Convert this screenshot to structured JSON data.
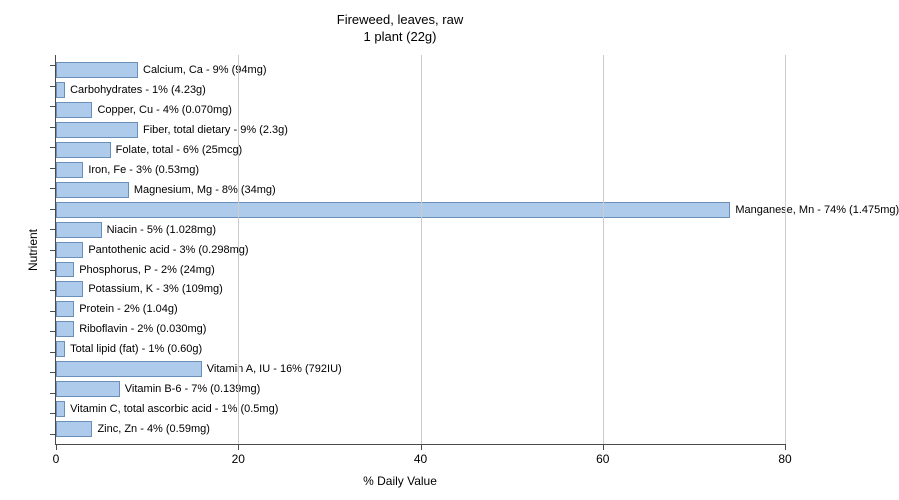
{
  "chart": {
    "type": "bar-horizontal",
    "title_line1": "Fireweed, leaves, raw",
    "title_line2": "1 plant (22g)",
    "title_fontsize": 13,
    "xlabel": "% Daily Value",
    "ylabel": "Nutrient",
    "label_fontsize": 12,
    "xlim": [
      0,
      80
    ],
    "xtick_step": 20,
    "xticks": [
      0,
      20,
      40,
      60,
      80
    ],
    "background_color": "#ffffff",
    "grid_color": "#cccccc",
    "axis_color": "#4a4a4a",
    "bar_color": "#aecbeb",
    "bar_border_color": "#6a8fb8",
    "bar_label_fontsize": 11,
    "bars": [
      {
        "label": "Calcium, Ca - 9% (94mg)",
        "value": 9
      },
      {
        "label": "Carbohydrates - 1% (4.23g)",
        "value": 1
      },
      {
        "label": "Copper, Cu - 4% (0.070mg)",
        "value": 4
      },
      {
        "label": "Fiber, total dietary - 9% (2.3g)",
        "value": 9
      },
      {
        "label": "Folate, total - 6% (25mcg)",
        "value": 6
      },
      {
        "label": "Iron, Fe - 3% (0.53mg)",
        "value": 3
      },
      {
        "label": "Magnesium, Mg - 8% (34mg)",
        "value": 8
      },
      {
        "label": "Manganese, Mn - 74% (1.475mg)",
        "value": 74
      },
      {
        "label": "Niacin - 5% (1.028mg)",
        "value": 5
      },
      {
        "label": "Pantothenic acid - 3% (0.298mg)",
        "value": 3
      },
      {
        "label": "Phosphorus, P - 2% (24mg)",
        "value": 2
      },
      {
        "label": "Potassium, K - 3% (109mg)",
        "value": 3
      },
      {
        "label": "Protein - 2% (1.04g)",
        "value": 2
      },
      {
        "label": "Riboflavin - 2% (0.030mg)",
        "value": 2
      },
      {
        "label": "Total lipid (fat) - 1% (0.60g)",
        "value": 1
      },
      {
        "label": "Vitamin A, IU - 16% (792IU)",
        "value": 16
      },
      {
        "label": "Vitamin B-6 - 7% (0.139mg)",
        "value": 7
      },
      {
        "label": "Vitamin C, total ascorbic acid - 1% (0.5mg)",
        "value": 1
      },
      {
        "label": "Zinc, Zn - 4% (0.59mg)",
        "value": 4
      }
    ]
  }
}
